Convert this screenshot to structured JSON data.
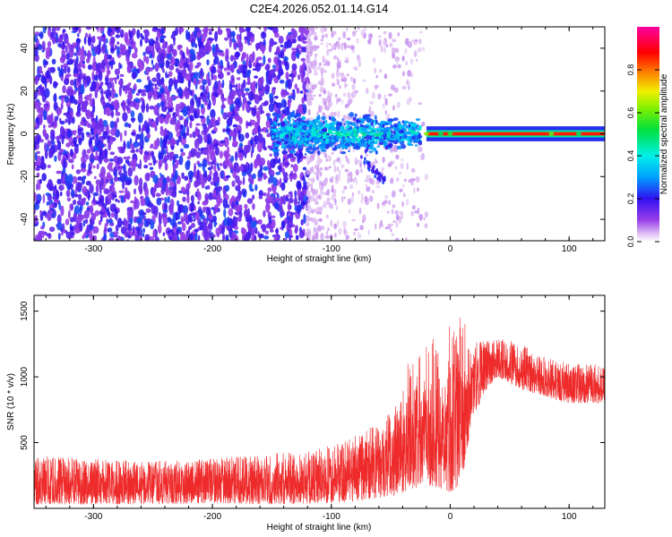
{
  "title": "C2E4.2026.052.01.14.G14",
  "chart_data": [
    {
      "type": "heatmap",
      "xlabel": "Height of straight line (km)",
      "ylabel": "Frequency (Hz)",
      "xlim": [
        -350,
        130
      ],
      "ylim": [
        -50,
        50
      ],
      "xticks": [
        -300,
        -200,
        -100,
        0,
        100
      ],
      "yticks": [
        -40,
        -20,
        0,
        20,
        40
      ],
      "colorbar": {
        "label": "Normalized spectral amplitude",
        "range": [
          0,
          1
        ],
        "ticks": [
          0.0,
          0.2,
          0.4,
          0.6,
          0.8
        ],
        "colormap": "rainbow (purple-blue-cyan-green-yellow-red-magenta)"
      },
      "regions": {
        "noise_band": {
          "x": [
            -350,
            -120
          ],
          "y": [
            -50,
            50
          ],
          "amplitude": [
            0.1,
            0.25
          ]
        },
        "transition_patches": {
          "x": [
            -120,
            -20
          ],
          "y": [
            -50,
            50
          ],
          "amplitude": [
            0.0,
            0.05
          ]
        },
        "signal_band_wide": {
          "x": [
            -150,
            -25
          ],
          "y": [
            -10,
            10
          ],
          "amplitude": [
            0.2,
            0.5
          ]
        },
        "tail_feature": {
          "x": [
            -75,
            -55
          ],
          "y": [
            -30,
            -10
          ],
          "amplitude": [
            0.15,
            0.25
          ]
        },
        "carrier_line": {
          "x": [
            -20,
            130
          ],
          "y": [
            -3,
            3
          ],
          "amplitude": [
            0.8,
            0.9
          ]
        }
      }
    },
    {
      "type": "line",
      "xlabel": "Height of straight line (km)",
      "ylabel": "SNR (10 * v/v)",
      "xlim": [
        -350,
        130
      ],
      "ylim": [
        0,
        1620
      ],
      "xticks": [
        -300,
        -200,
        -100,
        0,
        100
      ],
      "yticks": [
        500,
        1000,
        1500
      ],
      "series_color": "#ee2a2a",
      "envelope": {
        "x": [
          -350,
          -300,
          -250,
          -200,
          -150,
          -120,
          -100,
          -80,
          -60,
          -45,
          -30,
          -20,
          -10,
          0,
          5,
          10,
          15,
          20,
          30,
          40,
          60,
          80,
          100,
          130
        ],
        "lower": [
          30,
          30,
          30,
          40,
          30,
          30,
          40,
          50,
          80,
          100,
          150,
          180,
          150,
          120,
          150,
          200,
          500,
          700,
          900,
          1000,
          900,
          850,
          800,
          800
        ],
        "upper": [
          400,
          380,
          360,
          380,
          420,
          430,
          480,
          550,
          650,
          800,
          900,
          1000,
          1100,
          1200,
          1300,
          1400,
          1250,
          1300,
          1280,
          1300,
          1250,
          1150,
          1100,
          1100
        ]
      }
    }
  ]
}
